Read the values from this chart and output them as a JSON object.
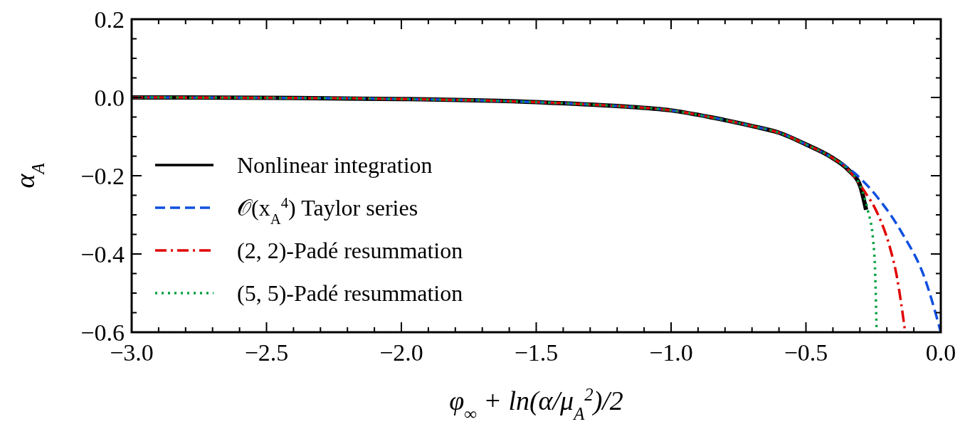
{
  "chart_data": {
    "type": "line",
    "xlabel": "φ$_{∞}$ + ln(α/μ$_{A}$$^{2}$)/2",
    "ylabel": "α$_{A}$",
    "xlim": [
      -3,
      0
    ],
    "ylim": [
      -0.6,
      0.2
    ],
    "xticks": [
      {
        "value": -3,
        "label": "−3.0"
      },
      {
        "value": -2.9,
        "label": null
      },
      {
        "value": -2.8,
        "label": null
      },
      {
        "value": -2.7,
        "label": null
      },
      {
        "value": -2.6,
        "label": null
      },
      {
        "value": -2.5,
        "label": "−2.5"
      },
      {
        "value": -2.4,
        "label": null
      },
      {
        "value": -2.3,
        "label": null
      },
      {
        "value": -2.2,
        "label": null
      },
      {
        "value": -2.1,
        "label": null
      },
      {
        "value": -2,
        "label": "−2.0"
      },
      {
        "value": -1.9,
        "label": null
      },
      {
        "value": -1.8,
        "label": null
      },
      {
        "value": -1.7,
        "label": null
      },
      {
        "value": -1.6,
        "label": null
      },
      {
        "value": -1.5,
        "label": "−1.5"
      },
      {
        "value": -1.4,
        "label": null
      },
      {
        "value": -1.3,
        "label": null
      },
      {
        "value": -1.2,
        "label": null
      },
      {
        "value": -1.1,
        "label": null
      },
      {
        "value": -1,
        "label": "−1.0"
      },
      {
        "value": -0.9,
        "label": null
      },
      {
        "value": -0.8,
        "label": null
      },
      {
        "value": -0.7,
        "label": null
      },
      {
        "value": -0.6,
        "label": null
      },
      {
        "value": -0.5,
        "label": "−0.5"
      },
      {
        "value": -0.4,
        "label": null
      },
      {
        "value": -0.3,
        "label": null
      },
      {
        "value": -0.2,
        "label": null
      },
      {
        "value": -0.1,
        "label": null
      },
      {
        "value": 0,
        "label": "0.0"
      }
    ],
    "yticks": [
      {
        "value": -0.6,
        "label": "−0.6"
      },
      {
        "value": -0.55,
        "label": null
      },
      {
        "value": -0.5,
        "label": null
      },
      {
        "value": -0.45,
        "label": null
      },
      {
        "value": -0.4,
        "label": "−0.4"
      },
      {
        "value": -0.35,
        "label": null
      },
      {
        "value": -0.3,
        "label": null
      },
      {
        "value": -0.25,
        "label": null
      },
      {
        "value": -0.2,
        "label": "−0.2"
      },
      {
        "value": -0.15,
        "label": null
      },
      {
        "value": -0.1,
        "label": null
      },
      {
        "value": -0.05,
        "label": null
      },
      {
        "value": 0,
        "label": "0.0"
      },
      {
        "value": 0.05,
        "label": null
      },
      {
        "value": 0.1,
        "label": null
      },
      {
        "value": 0.15,
        "label": null
      },
      {
        "value": 0.2,
        "label": "0.2"
      }
    ],
    "legend": "left",
    "grid": false,
    "series": [
      {
        "name": "Nonlinear integration",
        "color": "#000000",
        "line_style": "solid",
        "x": [
          -3,
          -2.5,
          -2,
          -1.5,
          -1.2,
          -1,
          -0.85,
          -0.7,
          -0.6,
          -0.5,
          -0.41,
          -0.34,
          -0.3,
          -0.277
        ],
        "values": [
          0,
          -0.001,
          -0.004,
          -0.012,
          -0.022,
          -0.033,
          -0.051,
          -0.073,
          -0.09,
          -0.12,
          -0.151,
          -0.187,
          -0.224,
          -0.287
        ]
      },
      {
        "name": "𝒪(x$_{A}$$^{4}$) Taylor series",
        "color": "#1050e0",
        "line_style": "dashed",
        "x": [
          -3,
          -2.5,
          -2,
          -1.5,
          -1.2,
          -1,
          -0.85,
          -0.7,
          -0.6,
          -0.5,
          -0.41,
          -0.32,
          -0.235,
          -0.145,
          -0.058,
          0
        ],
        "values": [
          0,
          -0.001,
          -0.004,
          -0.012,
          -0.022,
          -0.033,
          -0.051,
          -0.073,
          -0.09,
          -0.12,
          -0.151,
          -0.193,
          -0.255,
          -0.345,
          -0.465,
          -0.6
        ]
      },
      {
        "name": "(2, 2)-Padé resummation",
        "color": "#e00000",
        "line_style": "dashdot",
        "x": [
          -3,
          -2.5,
          -2,
          -1.5,
          -1.2,
          -1,
          -0.85,
          -0.7,
          -0.6,
          -0.5,
          -0.41,
          -0.34,
          -0.287,
          -0.235,
          -0.19,
          -0.164,
          -0.132
        ],
        "values": [
          0,
          -0.001,
          -0.004,
          -0.012,
          -0.022,
          -0.033,
          -0.051,
          -0.073,
          -0.09,
          -0.12,
          -0.151,
          -0.187,
          -0.236,
          -0.296,
          -0.38,
          -0.454,
          -0.6
        ]
      },
      {
        "name": "(5, 5)-Padé resummation",
        "color": "#00a040",
        "line_style": "dotted",
        "x": [
          -3,
          -2.5,
          -2,
          -1.5,
          -1.2,
          -1,
          -0.85,
          -0.7,
          -0.6,
          -0.5,
          -0.41,
          -0.34,
          -0.3,
          -0.27,
          -0.251,
          -0.243,
          -0.238
        ],
        "values": [
          0,
          -0.001,
          -0.004,
          -0.012,
          -0.022,
          -0.033,
          -0.051,
          -0.073,
          -0.09,
          -0.12,
          -0.151,
          -0.187,
          -0.224,
          -0.29,
          -0.364,
          -0.455,
          -0.6
        ]
      }
    ]
  }
}
